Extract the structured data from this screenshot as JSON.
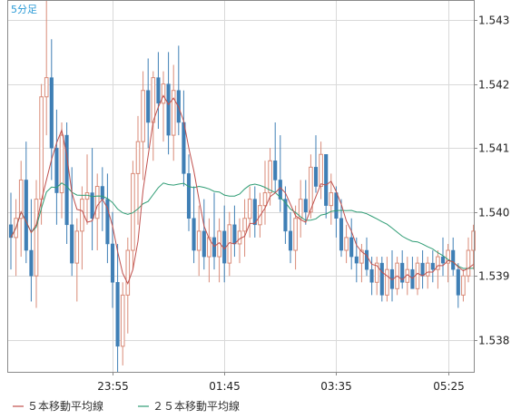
{
  "chart_data": {
    "type": "candlestick",
    "timeframe_label": "5分足",
    "x_ticks": [
      "23:55",
      "01:45",
      "03:35",
      "05:25"
    ],
    "y_ticks": [
      "1.538",
      "1.539",
      "1.540",
      "1.541",
      "1.542",
      "1.543"
    ],
    "ylim": [
      1.5375,
      1.5433
    ],
    "grid": true,
    "legend": [
      {
        "name": "５本移動平均線",
        "color": "#c0504d"
      },
      {
        "name": "２５本移動平均線",
        "color": "#2e9c74"
      }
    ],
    "colors": {
      "up": "#d98b78",
      "down": "#3f7fb5",
      "ma5": "#c0504d",
      "ma25": "#2e9c74",
      "grid": "#d9d9d9",
      "timeframe": "#2a9ad6"
    },
    "candles": [
      [
        1.5398,
        1.5403,
        1.5391,
        1.5396
      ],
      [
        1.5396,
        1.5402,
        1.539,
        1.5399
      ],
      [
        1.5399,
        1.5408,
        1.5393,
        1.5405
      ],
      [
        1.5405,
        1.5411,
        1.5392,
        1.5394
      ],
      [
        1.5394,
        1.5402,
        1.5386,
        1.539
      ],
      [
        1.539,
        1.5405,
        1.5385,
        1.5402
      ],
      [
        1.5402,
        1.542,
        1.5398,
        1.5418
      ],
      [
        1.5418,
        1.5433,
        1.5412,
        1.5421
      ],
      [
        1.5421,
        1.5427,
        1.5405,
        1.541
      ],
      [
        1.541,
        1.5416,
        1.5398,
        1.5403
      ],
      [
        1.5403,
        1.5414,
        1.5399,
        1.5412
      ],
      [
        1.5412,
        1.5414,
        1.5395,
        1.5398
      ],
      [
        1.5398,
        1.5407,
        1.539,
        1.5392
      ],
      [
        1.5392,
        1.5399,
        1.5386,
        1.5397
      ],
      [
        1.5397,
        1.5404,
        1.5391,
        1.5402
      ],
      [
        1.5402,
        1.5409,
        1.5398,
        1.5403
      ],
      [
        1.5403,
        1.541,
        1.5394,
        1.5399
      ],
      [
        1.5399,
        1.5406,
        1.5394,
        1.5404
      ],
      [
        1.5404,
        1.5407,
        1.5397,
        1.5402
      ],
      [
        1.5402,
        1.5406,
        1.5392,
        1.5395
      ],
      [
        1.5395,
        1.54,
        1.5385,
        1.5389
      ],
      [
        1.5389,
        1.5395,
        1.5375,
        1.5379
      ],
      [
        1.5379,
        1.5389,
        1.5376,
        1.5387
      ],
      [
        1.5387,
        1.5396,
        1.5381,
        1.5394
      ],
      [
        1.5394,
        1.5408,
        1.5391,
        1.5406
      ],
      [
        1.5406,
        1.5415,
        1.5398,
        1.5411
      ],
      [
        1.5411,
        1.5422,
        1.5405,
        1.5419
      ],
      [
        1.5419,
        1.5424,
        1.541,
        1.5414
      ],
      [
        1.5414,
        1.5422,
        1.5408,
        1.5421
      ],
      [
        1.5421,
        1.5425,
        1.5413,
        1.5417
      ],
      [
        1.5417,
        1.5422,
        1.5411,
        1.542
      ],
      [
        1.542,
        1.5425,
        1.5409,
        1.5412
      ],
      [
        1.5412,
        1.5423,
        1.5408,
        1.5419
      ],
      [
        1.5419,
        1.5426,
        1.5412,
        1.5414
      ],
      [
        1.5414,
        1.5419,
        1.5404,
        1.5406
      ],
      [
        1.5406,
        1.5409,
        1.5397,
        1.5399
      ],
      [
        1.5399,
        1.5404,
        1.5392,
        1.5394
      ],
      [
        1.5394,
        1.5401,
        1.539,
        1.5397
      ],
      [
        1.5397,
        1.5402,
        1.5391,
        1.5393
      ],
      [
        1.5393,
        1.5399,
        1.5389,
        1.5396
      ],
      [
        1.5396,
        1.5403,
        1.5391,
        1.5393
      ],
      [
        1.5393,
        1.5399,
        1.5389,
        1.5397
      ],
      [
        1.5397,
        1.5401,
        1.5389,
        1.5392
      ],
      [
        1.5392,
        1.54,
        1.539,
        1.5398
      ],
      [
        1.5398,
        1.5401,
        1.5393,
        1.5395
      ],
      [
        1.5395,
        1.5399,
        1.5392,
        1.5397
      ],
      [
        1.5397,
        1.5402,
        1.5393,
        1.5399
      ],
      [
        1.5399,
        1.5404,
        1.5396,
        1.5402
      ],
      [
        1.5402,
        1.5404,
        1.5396,
        1.5398
      ],
      [
        1.5398,
        1.5403,
        1.5396,
        1.5401
      ],
      [
        1.5401,
        1.5408,
        1.5398,
        1.5403
      ],
      [
        1.5403,
        1.541,
        1.5401,
        1.5408
      ],
      [
        1.5408,
        1.5414,
        1.5403,
        1.5405
      ],
      [
        1.5405,
        1.5412,
        1.54,
        1.5402
      ],
      [
        1.5402,
        1.5404,
        1.5395,
        1.5397
      ],
      [
        1.5397,
        1.54,
        1.5392,
        1.5394
      ],
      [
        1.5394,
        1.5401,
        1.5391,
        1.5399
      ],
      [
        1.5399,
        1.5405,
        1.5396,
        1.5402
      ],
      [
        1.5402,
        1.5405,
        1.5398,
        1.54
      ],
      [
        1.54,
        1.5409,
        1.5399,
        1.5407
      ],
      [
        1.5407,
        1.5412,
        1.5403,
        1.5404
      ],
      [
        1.5404,
        1.5411,
        1.5402,
        1.5409
      ],
      [
        1.5409,
        1.5409,
        1.5399,
        1.5401
      ],
      [
        1.5401,
        1.5406,
        1.5398,
        1.5403
      ],
      [
        1.5403,
        1.5404,
        1.5396,
        1.5399
      ],
      [
        1.5399,
        1.5402,
        1.5393,
        1.5394
      ],
      [
        1.5394,
        1.5398,
        1.5392,
        1.5396
      ],
      [
        1.5396,
        1.5399,
        1.5391,
        1.5393
      ],
      [
        1.5393,
        1.5396,
        1.5389,
        1.5392
      ],
      [
        1.5392,
        1.5395,
        1.5389,
        1.5394
      ],
      [
        1.5394,
        1.5396,
        1.539,
        1.5391
      ],
      [
        1.5391,
        1.5393,
        1.5387,
        1.5389
      ],
      [
        1.5389,
        1.5393,
        1.5387,
        1.5392
      ],
      [
        1.5392,
        1.5393,
        1.5386,
        1.5387
      ],
      [
        1.5387,
        1.5393,
        1.5386,
        1.5391
      ],
      [
        1.5391,
        1.5394,
        1.5386,
        1.5388
      ],
      [
        1.5388,
        1.5393,
        1.5387,
        1.5392
      ],
      [
        1.5392,
        1.5394,
        1.5388,
        1.5389
      ],
      [
        1.5389,
        1.5393,
        1.5387,
        1.5391
      ],
      [
        1.5391,
        1.5393,
        1.5388,
        1.5388
      ],
      [
        1.5388,
        1.5393,
        1.5387,
        1.5392
      ],
      [
        1.5392,
        1.5394,
        1.5388,
        1.539
      ],
      [
        1.539,
        1.5393,
        1.5388,
        1.5392
      ],
      [
        1.5392,
        1.5394,
        1.5389,
        1.5391
      ],
      [
        1.5391,
        1.5394,
        1.5388,
        1.5393
      ],
      [
        1.5393,
        1.5396,
        1.539,
        1.5392
      ],
      [
        1.5392,
        1.5395,
        1.5389,
        1.5394
      ],
      [
        1.5394,
        1.5396,
        1.539,
        1.5391
      ],
      [
        1.5391,
        1.5392,
        1.5385,
        1.5387
      ],
      [
        1.5387,
        1.5391,
        1.5386,
        1.539
      ],
      [
        1.539,
        1.5396,
        1.5389,
        1.5394
      ],
      [
        1.5394,
        1.5398,
        1.5391,
        1.5397
      ]
    ]
  }
}
